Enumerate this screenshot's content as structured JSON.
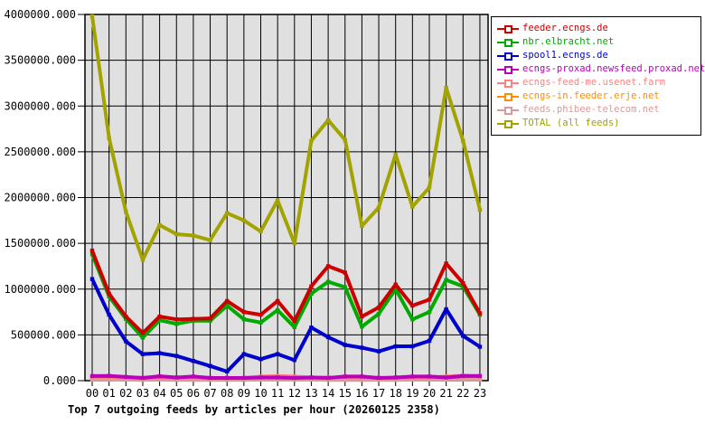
{
  "title": "Top 7 outgoing feeds by articles per hour (20260125 2358)",
  "colors": {
    "page_background": "#ffffff",
    "plot_background": "#e0e0e0",
    "grid": "#000000",
    "axis_text": "#000000"
  },
  "chart_data": {
    "type": "line",
    "title": "Top 7 outgoing feeds by articles per hour (20260125 2358)",
    "xlabel": "",
    "ylabel": "",
    "x": [
      "00",
      "01",
      "02",
      "03",
      "04",
      "05",
      "06",
      "07",
      "08",
      "09",
      "10",
      "11",
      "12",
      "13",
      "14",
      "15",
      "16",
      "17",
      "18",
      "19",
      "20",
      "21",
      "22",
      "23"
    ],
    "ylim": [
      0,
      4000000
    ],
    "ytick_step": 500000,
    "ytick_labels": [
      "0.000",
      "500000.000",
      "1000000.000",
      "1500000.000",
      "2000000.000",
      "2500000.000",
      "3000000.000",
      "3500000.000",
      "4000000.000"
    ],
    "grid": true,
    "legend_position": "top-right",
    "series": [
      {
        "name": "feeder.ecngs.de",
        "color": "#cc0000",
        "values": [
          1420000,
          950000,
          700000,
          520000,
          700000,
          670000,
          675000,
          680000,
          870000,
          750000,
          720000,
          870000,
          650000,
          1030000,
          1250000,
          1180000,
          700000,
          800000,
          1050000,
          820000,
          885000,
          1280000,
          1065000,
          735000
        ]
      },
      {
        "name": "nbr.elbracht.net",
        "color": "#00aa00",
        "values": [
          1380000,
          920000,
          675000,
          470000,
          660000,
          620000,
          655000,
          655000,
          820000,
          670000,
          635000,
          770000,
          585000,
          950000,
          1080000,
          1020000,
          590000,
          730000,
          1000000,
          670000,
          750000,
          1100000,
          1030000,
          720000
        ]
      },
      {
        "name": "spool1.ecngs.de",
        "color": "#0000cc",
        "values": [
          1110000,
          720000,
          430000,
          290000,
          300000,
          270000,
          215000,
          160000,
          100000,
          290000,
          235000,
          290000,
          225000,
          580000,
          475000,
          390000,
          360000,
          320000,
          375000,
          375000,
          435000,
          780000,
          490000,
          370000
        ]
      },
      {
        "name": "ecngs-proxad.newsfeed.proxad.net",
        "color": "#bb00bb",
        "values": [
          50000,
          52000,
          40000,
          30000,
          48000,
          35000,
          45000,
          30000,
          30000,
          30000,
          35000,
          35000,
          30000,
          35000,
          30000,
          45000,
          45000,
          30000,
          35000,
          45000,
          45000,
          35000,
          50000,
          50000
        ]
      },
      {
        "name": "ecngs-feed-me.usenet.farm",
        "color": "#ff8080",
        "values": [
          40000,
          40000,
          35000,
          30000,
          35000,
          30000,
          30000,
          30000,
          30000,
          30000,
          45000,
          50000,
          45000,
          35000,
          35000,
          35000,
          30000,
          30000,
          30000,
          30000,
          35000,
          45000,
          55000,
          50000
        ]
      },
      {
        "name": "ecngs-in.feeder.erje.net",
        "color": "#ff8c00",
        "values": [
          25000,
          20000,
          20000,
          15000,
          20000,
          15000,
          15000,
          15000,
          15000,
          15000,
          20000,
          20000,
          20000,
          20000,
          15000,
          15000,
          15000,
          15000,
          15000,
          20000,
          20000,
          25000,
          25000,
          20000
        ]
      },
      {
        "name": "feeds.phibee-telecom.net",
        "color": "#dd9999",
        "values": [
          12000,
          10000,
          10000,
          8000,
          10000,
          8000,
          8000,
          8000,
          8000,
          8000,
          10000,
          10000,
          10000,
          10000,
          8000,
          8000,
          8000,
          8000,
          8000,
          10000,
          10000,
          12000,
          12000,
          10000
        ]
      },
      {
        "name": "TOTAL (all feeds)",
        "color": "#a3a300",
        "values": [
          3980000,
          2650000,
          1845000,
          1320000,
          1700000,
          1600000,
          1585000,
          1535000,
          1830000,
          1750000,
          1630000,
          1970000,
          1500000,
          2620000,
          2845000,
          2630000,
          1690000,
          1890000,
          2470000,
          1900000,
          2110000,
          3200000,
          2620000,
          1865000
        ]
      }
    ]
  }
}
